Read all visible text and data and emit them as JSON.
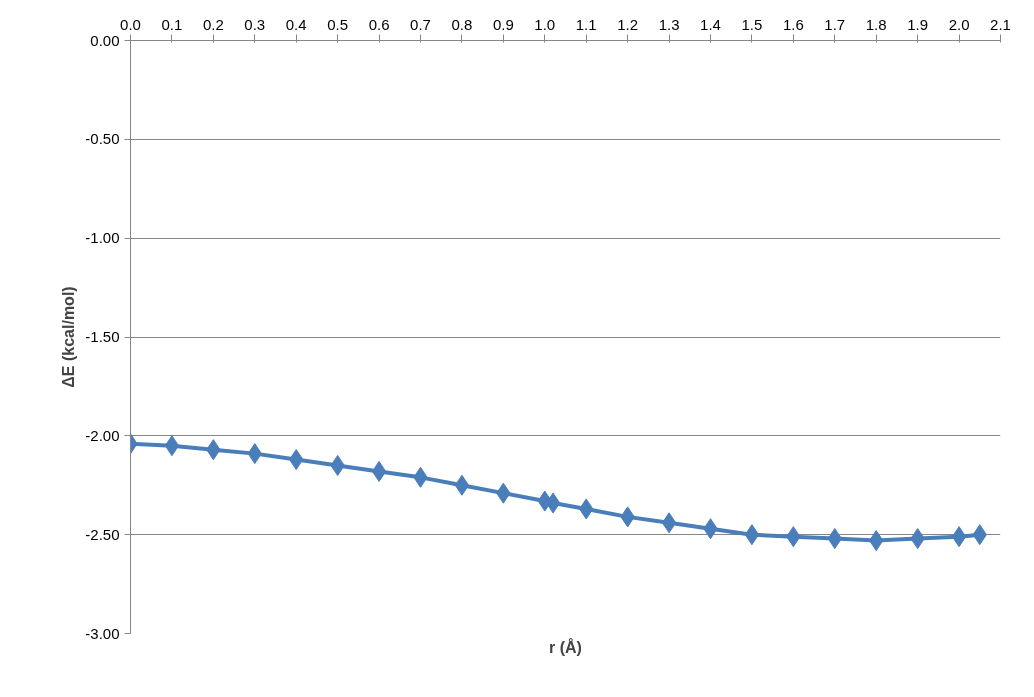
{
  "chart_data": {
    "type": "line",
    "xlabel": "r (Å)",
    "ylabel": "ΔE (kcal/mol)",
    "x": [
      0,
      0.1,
      0.2,
      0.3,
      0.4,
      0.5,
      0.6,
      0.7,
      0.8,
      0.9,
      1.0,
      1.02,
      1.1,
      1.2,
      1.3,
      1.4,
      1.5,
      1.6,
      1.7,
      1.8,
      1.9,
      2.0,
      2.05
    ],
    "series": [
      {
        "color": "#4a7ebb",
        "values": [
          -2.04,
          -2.05,
          -2.07,
          -2.09,
          -2.12,
          -2.15,
          -2.18,
          -2.21,
          -2.25,
          -2.29,
          -2.33,
          -2.34,
          -2.37,
          -2.41,
          -2.44,
          -2.47,
          -2.5,
          -2.51,
          -2.52,
          -2.53,
          -2.52,
          -2.51,
          -2.5
        ]
      }
    ],
    "xlim": [
      0,
      2.1
    ],
    "xticks": [
      {
        "value": 0,
        "label": "0.0"
      },
      0.1,
      0.2,
      0.3,
      0.4,
      0.5,
      0.6,
      0.7,
      0.8,
      0.9,
      {
        "value": 1,
        "label": "1.0"
      },
      1.1,
      1.2,
      1.3,
      1.4,
      1.5,
      1.6,
      1.7,
      1.8,
      1.9,
      {
        "value": 2,
        "label": "2.0"
      },
      2.1
    ],
    "ylim": [
      -3,
      0
    ],
    "yticks": [
      {
        "value": -3,
        "label": "-3.00"
      },
      {
        "value": -2.5,
        "label": "-2.50"
      },
      {
        "value": -2,
        "label": "-2.00"
      },
      {
        "value": -1.5,
        "label": "-1.50"
      },
      {
        "value": -1,
        "label": "-1.00"
      },
      {
        "value": -0.5,
        "label": "-0.50"
      },
      {
        "value": 0,
        "label": "0.00"
      }
    ],
    "grid": "y",
    "marker": "diamond",
    "line_style": "solid"
  }
}
